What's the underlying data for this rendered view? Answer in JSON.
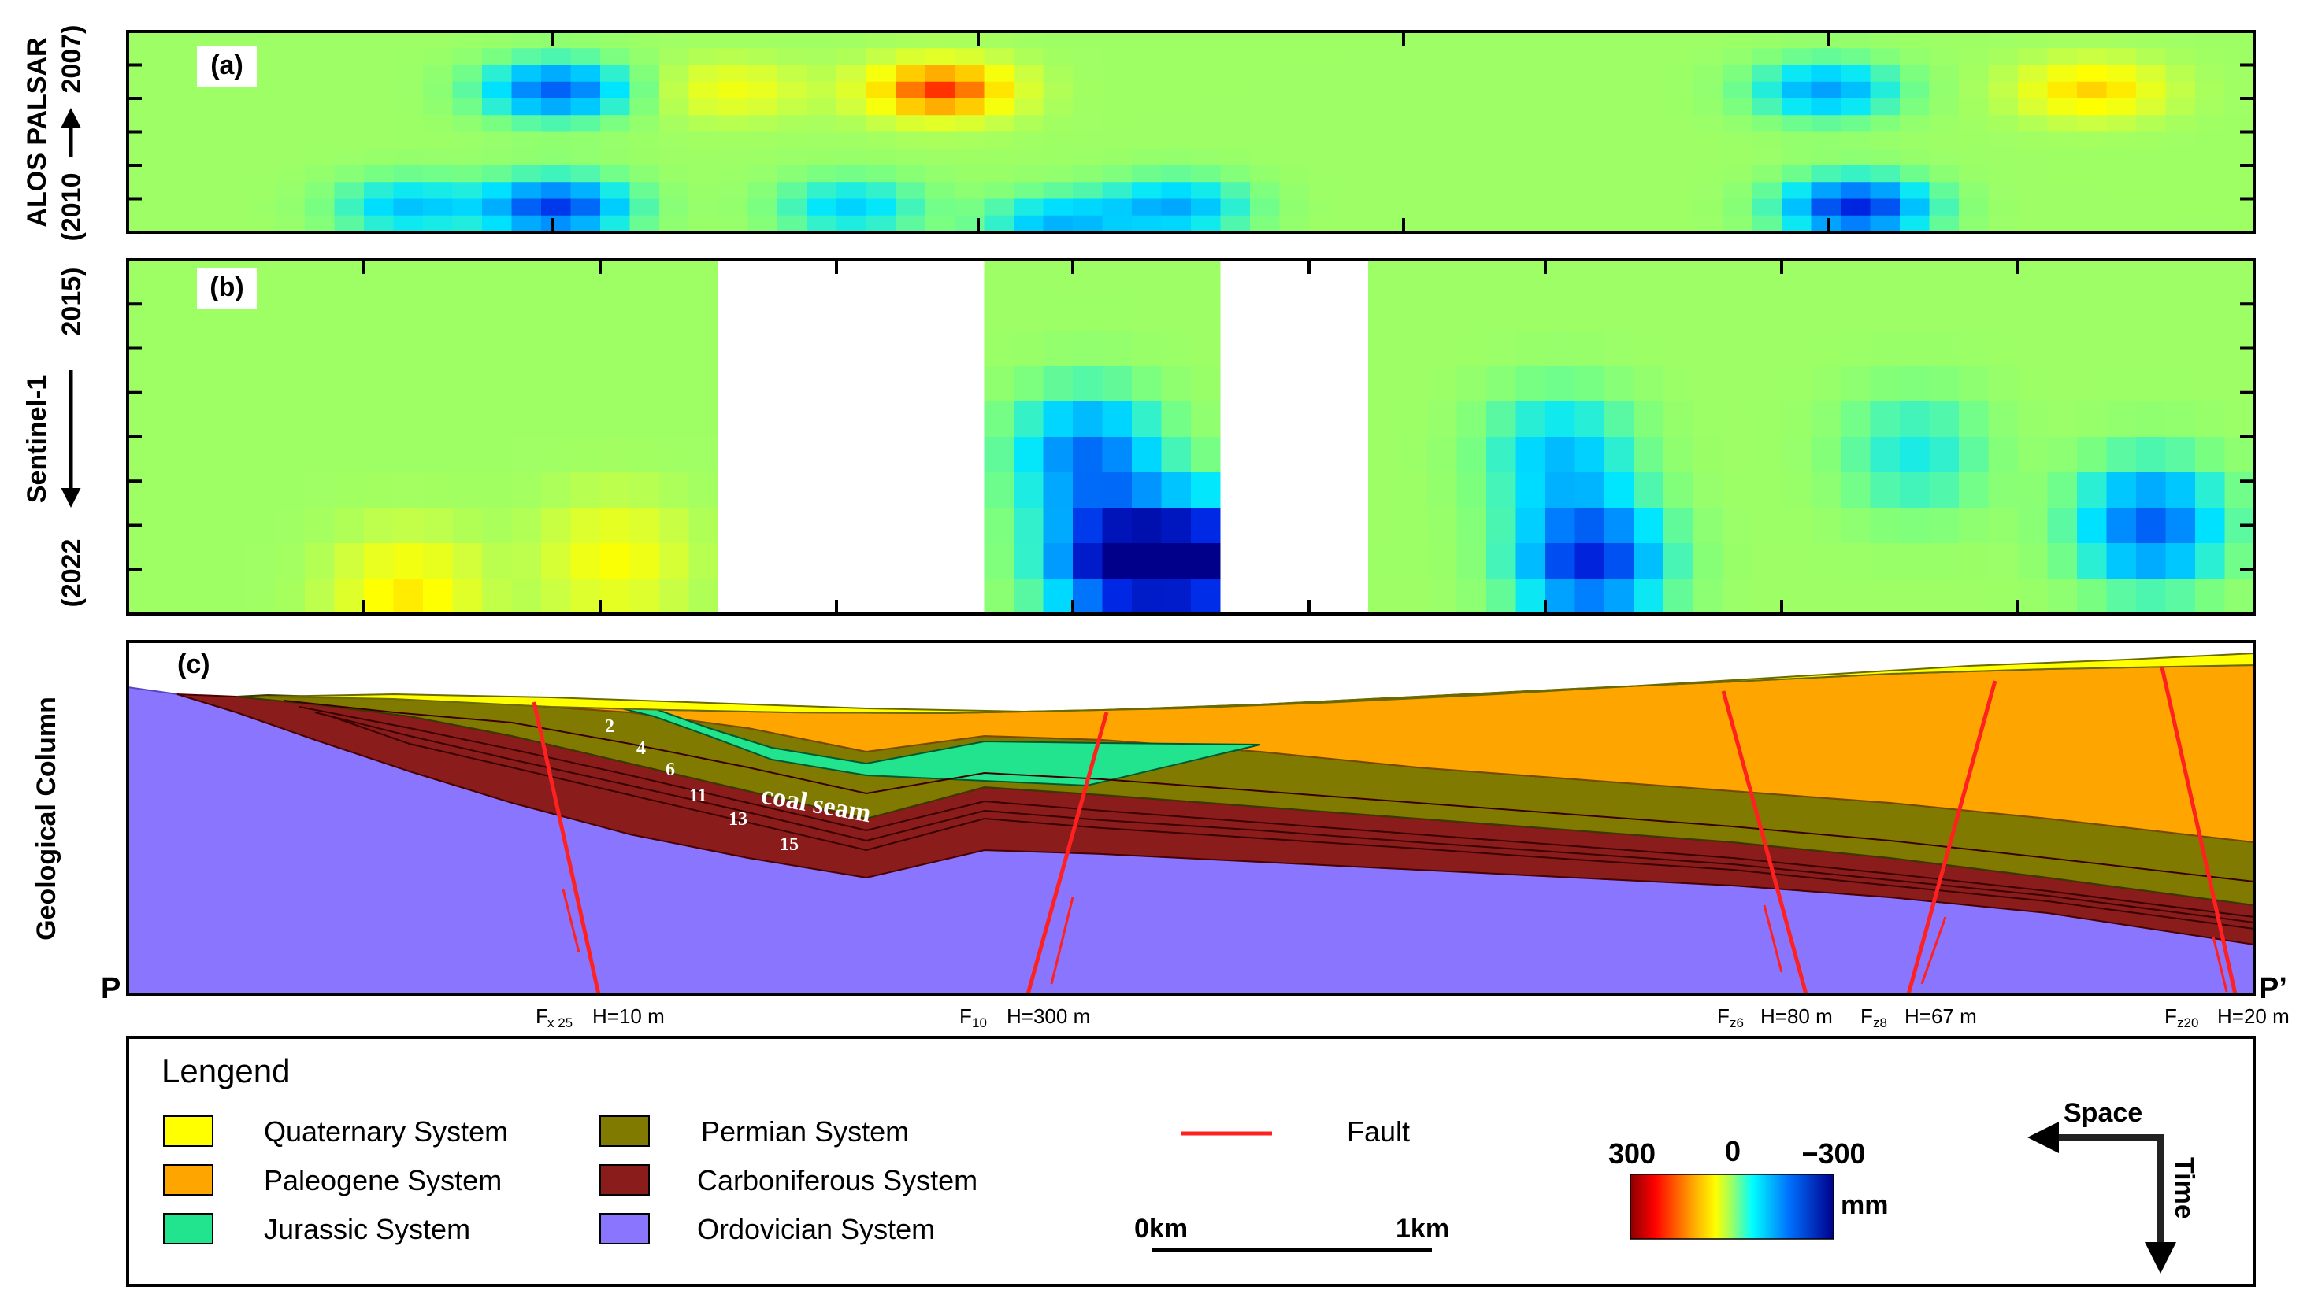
{
  "chart_data": [
    {
      "type": "heatmap",
      "panel": "(a)",
      "title": "",
      "ylabel_line1": "ALOS PALSAR",
      "ylabel_line2": "(2010",
      "ylabel_line3": "2007)",
      "time_start": 2007,
      "time_end": 2010,
      "rows": 12,
      "columns": 72,
      "value_units": "mm",
      "hotspots": [
        {
          "col": 14,
          "row": 10,
          "value": -230
        },
        {
          "col": 14,
          "row": 3,
          "value": -200
        },
        {
          "col": 27,
          "row": 3,
          "value": 210
        },
        {
          "col": 31,
          "row": 11,
          "value": -130
        },
        {
          "col": 35,
          "row": 10,
          "value": -140
        },
        {
          "col": 9,
          "row": 10,
          "value": -120
        },
        {
          "col": 24,
          "row": 10,
          "value": -110
        },
        {
          "col": 58,
          "row": 10,
          "value": -250
        },
        {
          "col": 57,
          "row": 3,
          "value": -150
        },
        {
          "col": 66,
          "row": 3,
          "value": 120
        },
        {
          "col": 20,
          "row": 3,
          "value": 70
        }
      ]
    },
    {
      "type": "heatmap",
      "panel": "(b)",
      "title": "",
      "ylabel_line1": "Sentinel-1",
      "ylabel_line2": "(2022",
      "ylabel_line3": "2015)",
      "time_start": 2015,
      "time_end": 2022,
      "rows": 10,
      "columns": 72,
      "value_units": "mm",
      "missing_column_ranges": [
        [
          20,
          28
        ],
        [
          37,
          41
        ]
      ],
      "hotspots": [
        {
          "col": 33,
          "row": 8,
          "value": -290
        },
        {
          "col": 36,
          "row": 8,
          "value": -280
        },
        {
          "col": 32,
          "row": 5,
          "value": -180
        },
        {
          "col": 49,
          "row": 8,
          "value": -250
        },
        {
          "col": 48,
          "row": 5,
          "value": -120
        },
        {
          "col": 68,
          "row": 7,
          "value": -200
        },
        {
          "col": 9,
          "row": 9,
          "value": 100
        },
        {
          "col": 16,
          "row": 8,
          "value": 80
        },
        {
          "col": 60,
          "row": 5,
          "value": -80
        }
      ]
    }
  ],
  "panels": {
    "a_label": "(a)",
    "b_label": "(b)",
    "c_label": "(c)"
  },
  "section": {
    "ylabel": "Geological Column",
    "left_end": "P",
    "right_end": "P’",
    "coal_seam_label": "coal seam",
    "seam_numbers": [
      "2",
      "4",
      "6",
      "11",
      "13",
      "15"
    ],
    "faults": [
      {
        "main": "F",
        "sub": "x 25",
        "throw": "H=10 m"
      },
      {
        "main": "F",
        "sub": "10",
        "throw": "H=300 m"
      },
      {
        "main": "F",
        "sub": "z6",
        "throw": "H=80 m"
      },
      {
        "main": "F",
        "sub": "z8",
        "throw": "H=67 m"
      },
      {
        "main": "F",
        "sub": "z20",
        "throw": "H=20 m"
      }
    ]
  },
  "legend": {
    "title": "Lengend",
    "items": [
      {
        "label": "Quaternary System",
        "color": "#ffff00"
      },
      {
        "label": "Paleogene System",
        "color": "#ffa500"
      },
      {
        "label": "Jurassic System",
        "color": "#22e38e"
      },
      {
        "label": "Permian System",
        "color": "#807a00"
      },
      {
        "label": "Carboniferous System",
        "color": "#8b1c1c"
      },
      {
        "label": "Ordovician System",
        "color": "#8a75ff"
      }
    ],
    "fault_label": "Fault",
    "fault_color": "#ff2020",
    "scale_start": "0km",
    "scale_end": "1km",
    "colorbar_max": "300",
    "colorbar_mid": "0",
    "colorbar_min": "−300",
    "colorbar_unit": "mm",
    "space_label": "Space",
    "time_label": "Time"
  }
}
